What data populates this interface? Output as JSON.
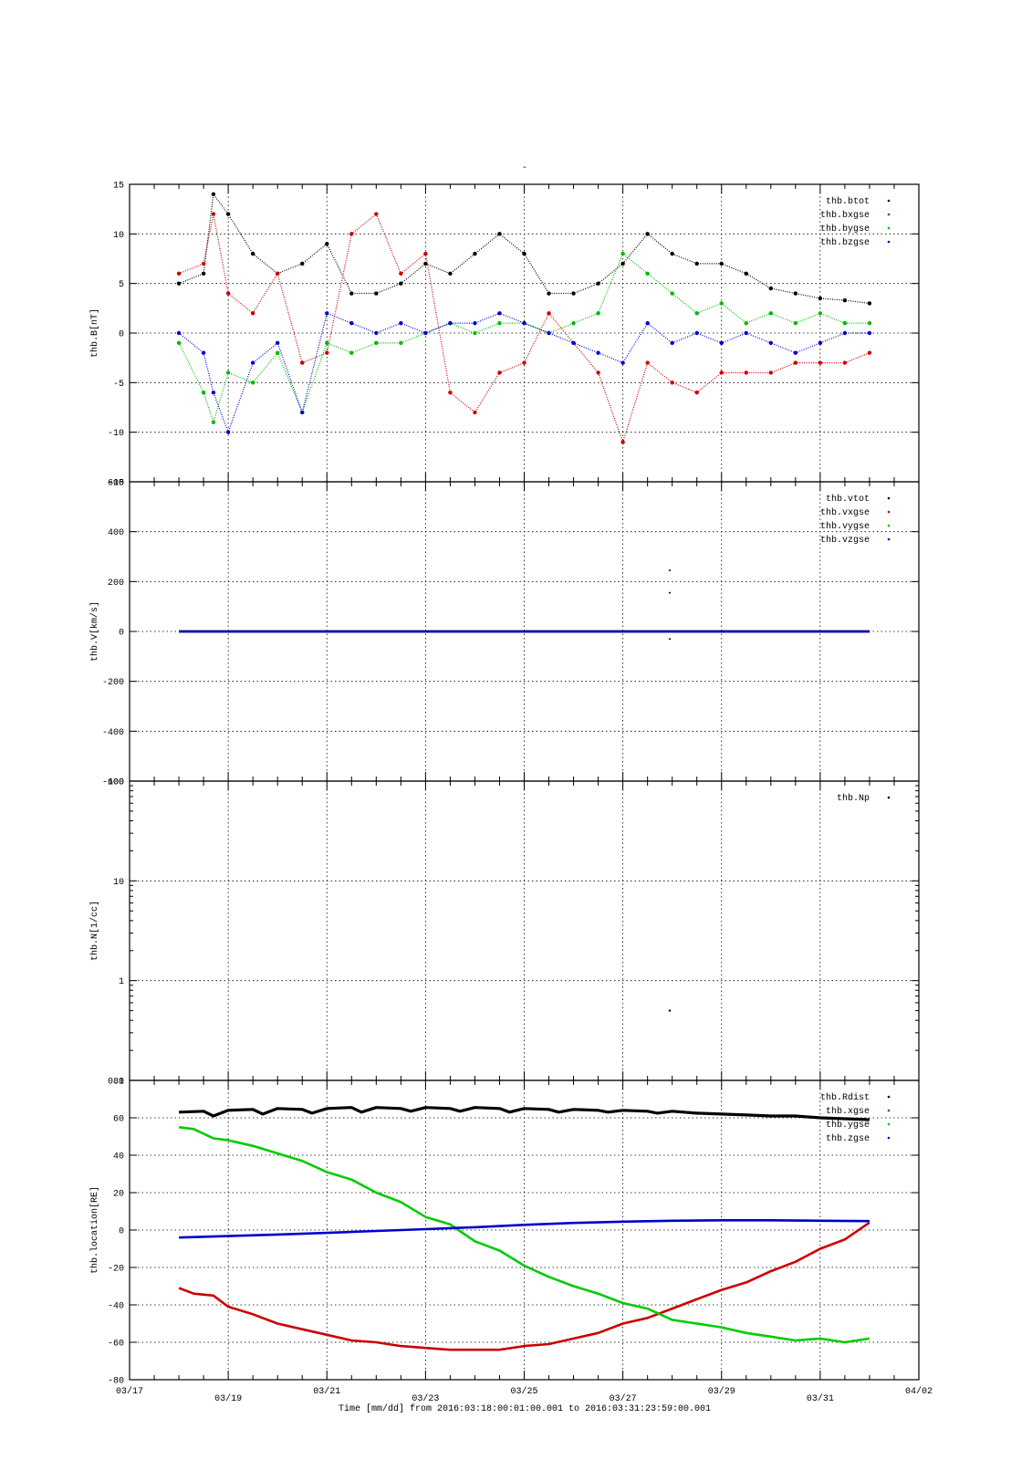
{
  "figure": {
    "title": "-",
    "time_axis": {
      "label": "Time [mm/dd]  from 2016:03:18:00:01:00.001  to  2016:03:31:23:59:00.001",
      "range_days": [
        0,
        16
      ],
      "tick_labels": [
        "03/17",
        "03/19",
        "03/21",
        "03/23",
        "03/25",
        "03/27",
        "03/29",
        "03/31",
        "04/02"
      ],
      "tick_days": [
        0,
        2,
        4,
        6,
        8,
        10,
        12,
        14,
        16
      ]
    }
  },
  "chart_data": [
    {
      "type": "scatter",
      "ylabel": "thb.B[nT]",
      "ylim": [
        -15,
        15
      ],
      "ytick_labels": [
        "15",
        "10",
        "5",
        "0",
        "-5",
        "-10",
        "-15"
      ],
      "ytick_values": [
        15,
        10,
        5,
        0,
        -5,
        -10,
        -15
      ],
      "grid": true,
      "legend_position": "top-right",
      "series": [
        {
          "name": "thb.btot",
          "color": "#000000",
          "x": [
            1.0,
            1.5,
            1.7,
            2.0,
            2.5,
            3.0,
            3.5,
            4.0,
            4.5,
            5.0,
            5.5,
            6.0,
            6.5,
            7.0,
            7.5,
            8.0,
            8.5,
            9.0,
            9.5,
            10.0,
            10.5,
            11.0,
            11.5,
            12.0,
            12.5,
            13.0,
            13.5,
            14.0,
            14.5,
            15.0
          ],
          "y": [
            5,
            6,
            14,
            12,
            8,
            6,
            7,
            9,
            4,
            4,
            5,
            7,
            6,
            8,
            10,
            8,
            4,
            4,
            5,
            7,
            10,
            8,
            7,
            7,
            6,
            4.5,
            4,
            3.5,
            3.3,
            3
          ]
        },
        {
          "name": "thb.bxgse",
          "color": "#cc0000",
          "x": [
            1.0,
            1.5,
            1.7,
            2.0,
            2.5,
            3.0,
            3.5,
            4.0,
            4.5,
            5.0,
            5.5,
            6.0,
            6.5,
            7.0,
            7.5,
            8.0,
            8.5,
            9.0,
            9.5,
            10.0,
            10.5,
            11.0,
            11.5,
            12.0,
            12.5,
            13.0,
            13.5,
            14.0,
            14.5,
            15.0
          ],
          "y": [
            6,
            7,
            12,
            4,
            2,
            6,
            -3,
            -2,
            10,
            12,
            6,
            8,
            -6,
            -8,
            -4,
            -3,
            2,
            -1,
            -4,
            -11,
            -3,
            -5,
            -6,
            -4,
            -4,
            -4,
            -3,
            -3,
            -3,
            -2
          ]
        },
        {
          "name": "thb.bygse",
          "color": "#00bb00",
          "x": [
            1.0,
            1.5,
            1.7,
            2.0,
            2.5,
            3.0,
            3.5,
            4.0,
            4.5,
            5.0,
            5.5,
            6.0,
            6.5,
            7.0,
            7.5,
            8.0,
            8.5,
            9.0,
            9.5,
            10.0,
            10.5,
            11.0,
            11.5,
            12.0,
            12.5,
            13.0,
            13.5,
            14.0,
            14.5,
            15.0
          ],
          "y": [
            -1,
            -6,
            -9,
            -4,
            -5,
            -2,
            -8,
            -1,
            -2,
            -1,
            -1,
            0,
            1,
            0,
            1,
            1,
            0,
            1,
            2,
            8,
            6,
            4,
            2,
            3,
            1,
            2,
            1,
            2,
            1,
            1
          ]
        },
        {
          "name": "thb.bzgse",
          "color": "#0000cc",
          "x": [
            1.0,
            1.5,
            1.7,
            2.0,
            2.5,
            3.0,
            3.5,
            4.0,
            4.5,
            5.0,
            5.5,
            6.0,
            6.5,
            7.0,
            7.5,
            8.0,
            8.5,
            9.0,
            9.5,
            10.0,
            10.5,
            11.0,
            11.5,
            12.0,
            12.5,
            13.0,
            13.5,
            14.0,
            14.5,
            15.0
          ],
          "y": [
            0,
            -2,
            -6,
            -10,
            -3,
            -1,
            -8,
            2,
            1,
            0,
            1,
            0,
            1,
            1,
            2,
            1,
            0,
            -1,
            -2,
            -3,
            1,
            -1,
            0,
            -1,
            0,
            -1,
            -2,
            -1,
            0,
            0
          ]
        }
      ]
    },
    {
      "type": "scatter",
      "ylabel": "thb.V[km/s]",
      "ylim": [
        -600,
        600
      ],
      "ytick_labels": [
        "600",
        "400",
        "200",
        "0",
        "-200",
        "-400",
        "-600"
      ],
      "ytick_values": [
        600,
        400,
        200,
        0,
        -200,
        -400,
        -600
      ],
      "grid": true,
      "legend_position": "top-right",
      "series": [
        {
          "name": "thb.vtot",
          "color": "#000000",
          "x": [
            1.0,
            15.0
          ],
          "y": [
            0,
            0
          ]
        },
        {
          "name": "thb.vxgse",
          "color": "#cc0000",
          "x": [
            1.0,
            15.0
          ],
          "y": [
            0,
            0
          ]
        },
        {
          "name": "thb.vygse",
          "color": "#00bb00",
          "x": [
            1.0,
            15.0
          ],
          "y": [
            0,
            0
          ]
        },
        {
          "name": "thb.vzgse",
          "color": "#0000cc",
          "x": [
            1.0,
            15.0
          ],
          "y": [
            0,
            0
          ]
        }
      ],
      "outliers": {
        "x": [
          10.95,
          10.95,
          10.95
        ],
        "y": [
          245,
          155,
          -30
        ]
      }
    },
    {
      "type": "scatter",
      "ylabel": "thb.N[1/cc]",
      "yscale": "log",
      "ylim": [
        0.1,
        100
      ],
      "ytick_labels": [
        "100",
        "10",
        "1",
        "0.1"
      ],
      "ytick_values": [
        100,
        10,
        1,
        0.1
      ],
      "grid": true,
      "legend_position": "top-right",
      "series": [
        {
          "name": "thb.Np",
          "color": "#000000",
          "x": [
            10.95
          ],
          "y": [
            0.5
          ]
        }
      ]
    },
    {
      "type": "line",
      "ylabel": "thb.location[RE]",
      "ylim": [
        -80,
        80
      ],
      "ytick_labels": [
        "80",
        "60",
        "40",
        "20",
        "0",
        "-20",
        "-40",
        "-60",
        "-80"
      ],
      "ytick_values": [
        80,
        60,
        40,
        20,
        0,
        -20,
        -40,
        -60,
        -80
      ],
      "grid": true,
      "legend_position": "top-right",
      "series": [
        {
          "name": "thb.Rdist",
          "color": "#000000",
          "x": [
            1.0,
            1.5,
            1.7,
            2.0,
            2.5,
            2.7,
            3.0,
            3.5,
            3.7,
            4.0,
            4.5,
            4.7,
            5.0,
            5.5,
            5.7,
            6.0,
            6.5,
            6.7,
            7.0,
            7.5,
            7.7,
            8.0,
            8.5,
            8.7,
            9.0,
            9.5,
            9.7,
            10.0,
            10.5,
            10.7,
            11.0,
            11.5,
            12.0,
            12.5,
            13.0,
            13.5,
            14.0,
            14.5,
            15.0
          ],
          "y": [
            63,
            63.5,
            61,
            64,
            64.5,
            62,
            65,
            64.5,
            62.5,
            65,
            65.5,
            63,
            65.5,
            65,
            63.5,
            65.5,
            65,
            63.5,
            65.5,
            65,
            63,
            65,
            64.5,
            63,
            64.5,
            64,
            63,
            64,
            63.5,
            62.5,
            63.5,
            62.5,
            62,
            61.5,
            61,
            61,
            60,
            59.5,
            59
          ]
        },
        {
          "name": "thb.xgse",
          "color": "#cc0000",
          "x": [
            1.0,
            1.3,
            1.7,
            2.0,
            2.5,
            3.0,
            3.5,
            4.0,
            4.5,
            5.0,
            5.5,
            6.0,
            6.5,
            7.0,
            7.5,
            8.0,
            8.5,
            9.0,
            9.5,
            10.0,
            10.5,
            11.0,
            11.5,
            12.0,
            12.5,
            13.0,
            13.5,
            14.0,
            14.5,
            15.0
          ],
          "y": [
            -31,
            -34,
            -35,
            -41,
            -45,
            -50,
            -53,
            -56,
            -59,
            -60,
            -62,
            -63,
            -64,
            -64,
            -64,
            -62,
            -61,
            -58,
            -55,
            -50,
            -47,
            -42,
            -37,
            -32,
            -28,
            -22,
            -17,
            -10,
            -5,
            4
          ]
        },
        {
          "name": "thb.ygse",
          "color": "#00cc00",
          "x": [
            1.0,
            1.3,
            1.7,
            2.0,
            2.5,
            3.0,
            3.5,
            4.0,
            4.5,
            5.0,
            5.5,
            6.0,
            6.5,
            7.0,
            7.5,
            8.0,
            8.5,
            9.0,
            9.5,
            10.0,
            10.5,
            11.0,
            11.5,
            12.0,
            12.5,
            13.0,
            13.5,
            14.0,
            14.5,
            15.0
          ],
          "y": [
            55,
            54,
            49,
            48,
            45,
            41,
            37,
            31,
            27,
            20,
            15,
            7,
            3,
            -6,
            -11,
            -19,
            -25,
            -30,
            -34,
            -39,
            -42,
            -48,
            -50,
            -52,
            -55,
            -57,
            -59,
            -58,
            -60,
            -58
          ]
        },
        {
          "name": "thb.zgse",
          "color": "#0000cc",
          "x": [
            1.0,
            2.0,
            3.0,
            4.0,
            5.0,
            6.0,
            7.0,
            8.0,
            9.0,
            10.0,
            11.0,
            12.0,
            13.0,
            14.0,
            15.0
          ],
          "y": [
            -4,
            -3.2,
            -2.4,
            -1.5,
            -0.5,
            0.5,
            1.5,
            2.8,
            3.8,
            4.5,
            5,
            5.2,
            5.2,
            5,
            4.8
          ]
        }
      ]
    }
  ]
}
